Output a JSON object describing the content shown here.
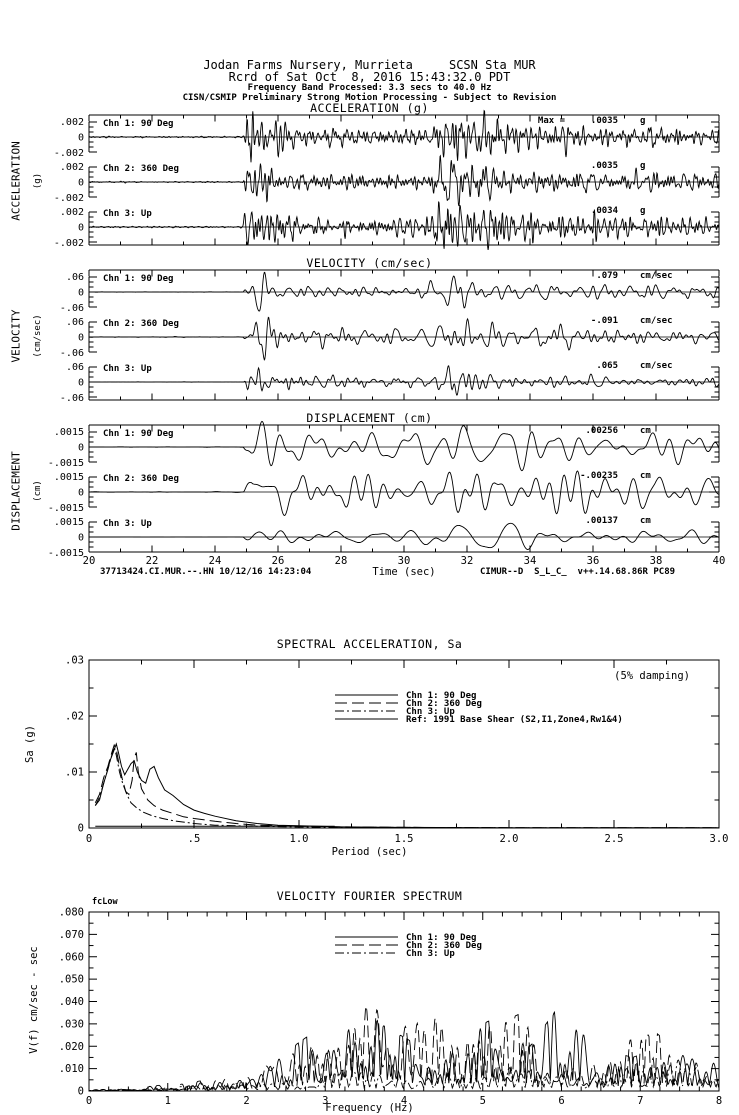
{
  "header": {
    "line1": "Jodan Farms Nursery, Murrieta     SCSN Sta MUR",
    "line2": "Rcrd of Sat Oct  8, 2016 15:43:32.0 PDT",
    "line3": "Frequency Band Processed: 3.3 secs to 40.0 Hz",
    "line4": "CISN/CSMIP Preliminary Strong Motion Processing - Subject to Revision"
  },
  "footer": {
    "left": "37713424.CI.MUR.--.HN 10/12/16 14:23:04",
    "right": "CIMUR--D  S_L_C_  v++.14.68.86R PC89"
  },
  "chart_data": [
    {
      "type": "line",
      "subtype": "seismogram-set",
      "time_axis": {
        "label": "Time (sec)",
        "xlim": [
          20,
          40
        ],
        "major_tick": 2,
        "minor_tick": 1,
        "tick_labels": [
          "20",
          "22",
          "24",
          "26",
          "28",
          "30",
          "32",
          "34",
          "36",
          "38",
          "40"
        ]
      },
      "groups": [
        {
          "title": "ACCELERATION (g)",
          "side_label": "ACCELERATION",
          "side_unit": "(g)",
          "ytick_value": 0.002,
          "ytick_labels": [
            ".002",
            "0",
            "-.002"
          ],
          "npts": 1400,
          "envelope": [
            [
              20,
              0.02
            ],
            [
              24.85,
              0.02
            ],
            [
              25.0,
              0.5
            ],
            [
              25.25,
              1.0
            ],
            [
              25.9,
              0.52
            ],
            [
              26.6,
              0.34
            ],
            [
              28.0,
              0.27
            ],
            [
              30.0,
              0.25
            ],
            [
              30.9,
              0.3
            ],
            [
              31.2,
              0.8
            ],
            [
              31.5,
              0.95
            ],
            [
              32.4,
              0.6
            ],
            [
              33.3,
              0.45
            ],
            [
              34.5,
              0.36
            ],
            [
              36.0,
              0.32
            ],
            [
              38.0,
              0.28
            ],
            [
              40,
              0.26
            ]
          ],
          "channels": [
            {
              "label": "Chn 1: 90 Deg",
              "max_prefix": "Max =",
              "max": ".0035",
              "max_value": 0.0035,
              "unit": "g",
              "seed": 11,
              "band": [
                2,
                13
              ]
            },
            {
              "label": "Chn 2: 360 Deg",
              "max_prefix": "",
              "max": ".0035",
              "max_value": 0.0035,
              "unit": "g",
              "seed": 23,
              "band": [
                2,
                13
              ]
            },
            {
              "label": "Chn 3: Up",
              "max_prefix": "",
              "max": ".0034",
              "max_value": 0.0034,
              "unit": "g",
              "seed": 37,
              "band": [
                2.5,
                14
              ]
            }
          ]
        },
        {
          "title": "VELOCITY (cm/sec)",
          "side_label": "VELOCITY",
          "side_unit": "(cm/sec)",
          "ytick_value": 0.06,
          "ytick_labels": [
            ".06",
            "0",
            "-.06"
          ],
          "npts": 1100,
          "envelope": [
            [
              20,
              0.012
            ],
            [
              24.9,
              0.012
            ],
            [
              25.05,
              0.6
            ],
            [
              25.35,
              0.95
            ],
            [
              26.1,
              0.5
            ],
            [
              27.0,
              0.4
            ],
            [
              28.5,
              0.33
            ],
            [
              30.6,
              0.33
            ],
            [
              31.2,
              1.0
            ],
            [
              32.2,
              0.62
            ],
            [
              33.2,
              0.5
            ],
            [
              34.5,
              0.42
            ],
            [
              36.0,
              0.38
            ],
            [
              38.0,
              0.33
            ],
            [
              40,
              0.3
            ]
          ],
          "channels": [
            {
              "label": "Chn 1: 90 Deg",
              "max_prefix": "",
              "max": ".079",
              "max_value": 0.079,
              "unit": "cm/sec",
              "seed": 41,
              "band": [
                0.9,
                6
              ]
            },
            {
              "label": "Chn 2: 360 Deg",
              "max_prefix": "",
              "max": "-.091",
              "max_value": -0.091,
              "unit": "cm/sec",
              "seed": 53,
              "band": [
                0.9,
                6
              ]
            },
            {
              "label": "Chn 3: Up",
              "max_prefix": "",
              "max": ".065",
              "max_value": 0.065,
              "unit": "cm/sec",
              "seed": 67,
              "band": [
                1.1,
                7
              ]
            }
          ]
        },
        {
          "title": "DISPLACEMENT (cm)",
          "side_label": "DISPLACEMENT",
          "side_unit": "(cm)",
          "ytick_value": 0.0015,
          "ytick_labels": [
            ".0015",
            "0",
            "-.0015"
          ],
          "npts": 900,
          "envelope": [
            [
              20,
              0.01
            ],
            [
              24.9,
              0.01
            ],
            [
              25.15,
              0.85
            ],
            [
              25.7,
              1.0
            ],
            [
              26.8,
              0.75
            ],
            [
              28.5,
              0.6
            ],
            [
              30.5,
              0.55
            ],
            [
              31.4,
              0.95
            ],
            [
              32.8,
              0.8
            ],
            [
              34.5,
              0.65
            ],
            [
              36.5,
              0.55
            ],
            [
              38.5,
              0.5
            ],
            [
              40,
              0.45
            ]
          ],
          "channels": [
            {
              "label": "Chn 1: 90 Deg",
              "max_prefix": "",
              "max": ".00256",
              "max_value": 0.00256,
              "unit": "cm",
              "seed": 71,
              "band": [
                0.55,
                2.6
              ]
            },
            {
              "label": "Chn 2: 360 Deg",
              "max_prefix": "",
              "max": "-.00235",
              "max_value": -0.00235,
              "unit": "cm",
              "seed": 83,
              "band": [
                0.55,
                2.6
              ]
            },
            {
              "label": "Chn 3: Up",
              "max_prefix": "",
              "max": ".00137",
              "max_value": 0.00137,
              "unit": "cm",
              "seed": 97,
              "band": [
                0.4,
                2.0
              ]
            }
          ]
        }
      ]
    },
    {
      "type": "line",
      "title": "SPECTRAL ACCELERATION, Sa",
      "annotation": "(5% damping)",
      "xlabel": "Period (sec)",
      "ylabel": "Sa (g)",
      "xlim": [
        0,
        3.0
      ],
      "ylim": [
        0,
        0.03
      ],
      "xtick_labels": [
        "0",
        ".5",
        "1.0",
        "1.5",
        "2.0",
        "2.5",
        "3.0"
      ],
      "ytick_labels": [
        "0",
        ".01",
        ".02",
        ".03"
      ],
      "legend_position": "top-center-inside",
      "series": [
        {
          "name": "Chn 1: 90 Deg",
          "dash": "",
          "points": [
            [
              0.03,
              0.004
            ],
            [
              0.05,
              0.005
            ],
            [
              0.07,
              0.008
            ],
            [
              0.09,
              0.0105
            ],
            [
              0.1,
              0.012
            ],
            [
              0.115,
              0.0135
            ],
            [
              0.13,
              0.015
            ],
            [
              0.14,
              0.0135
            ],
            [
              0.155,
              0.011
            ],
            [
              0.17,
              0.0095
            ],
            [
              0.185,
              0.0105
            ],
            [
              0.2,
              0.0115
            ],
            [
              0.215,
              0.012
            ],
            [
              0.23,
              0.01
            ],
            [
              0.25,
              0.0085
            ],
            [
              0.27,
              0.008
            ],
            [
              0.29,
              0.0105
            ],
            [
              0.31,
              0.011
            ],
            [
              0.33,
              0.009
            ],
            [
              0.36,
              0.0068
            ],
            [
              0.4,
              0.0058
            ],
            [
              0.45,
              0.0042
            ],
            [
              0.5,
              0.0032
            ],
            [
              0.55,
              0.0026
            ],
            [
              0.6,
              0.0021
            ],
            [
              0.7,
              0.0013
            ],
            [
              0.8,
              0.0008
            ],
            [
              0.9,
              0.0005
            ],
            [
              1.0,
              0.0004
            ],
            [
              1.2,
              0.0002
            ],
            [
              1.5,
              0.0001
            ],
            [
              2.0,
              6e-05
            ],
            [
              2.5,
              4e-05
            ],
            [
              3.0,
              3e-05
            ]
          ]
        },
        {
          "name": "Chn 2: 360 Deg",
          "dash": "12,5",
          "points": [
            [
              0.03,
              0.0045
            ],
            [
              0.05,
              0.006
            ],
            [
              0.07,
              0.009
            ],
            [
              0.09,
              0.011
            ],
            [
              0.105,
              0.013
            ],
            [
              0.12,
              0.0148
            ],
            [
              0.13,
              0.014
            ],
            [
              0.145,
              0.011
            ],
            [
              0.16,
              0.0085
            ],
            [
              0.175,
              0.0065
            ],
            [
              0.19,
              0.006
            ],
            [
              0.205,
              0.0085
            ],
            [
              0.215,
              0.0125
            ],
            [
              0.225,
              0.0135
            ],
            [
              0.235,
              0.01
            ],
            [
              0.25,
              0.007
            ],
            [
              0.28,
              0.005
            ],
            [
              0.31,
              0.004
            ],
            [
              0.35,
              0.0032
            ],
            [
              0.4,
              0.0026
            ],
            [
              0.45,
              0.002
            ],
            [
              0.5,
              0.0017
            ],
            [
              0.6,
              0.0012
            ],
            [
              0.7,
              0.0008
            ],
            [
              0.8,
              0.0005
            ],
            [
              1.0,
              0.0003
            ],
            [
              1.2,
              0.0002
            ],
            [
              1.5,
              0.0001
            ],
            [
              2.0,
              5e-05
            ],
            [
              3.0,
              3e-05
            ]
          ]
        },
        {
          "name": "Chn 3: Up",
          "dash": "9,3,2,3",
          "points": [
            [
              0.03,
              0.004
            ],
            [
              0.05,
              0.0055
            ],
            [
              0.07,
              0.008
            ],
            [
              0.09,
              0.0105
            ],
            [
              0.105,
              0.0125
            ],
            [
              0.12,
              0.0145
            ],
            [
              0.13,
              0.013
            ],
            [
              0.145,
              0.01
            ],
            [
              0.16,
              0.008
            ],
            [
              0.18,
              0.006
            ],
            [
              0.2,
              0.0045
            ],
            [
              0.23,
              0.0035
            ],
            [
              0.26,
              0.0028
            ],
            [
              0.3,
              0.0022
            ],
            [
              0.35,
              0.0017
            ],
            [
              0.4,
              0.0013
            ],
            [
              0.5,
              0.0008
            ],
            [
              0.6,
              0.0005
            ],
            [
              0.8,
              0.0003
            ],
            [
              1.0,
              0.0002
            ],
            [
              1.5,
              0.0001
            ],
            [
              2.0,
              5e-05
            ],
            [
              3.0,
              3e-05
            ]
          ]
        },
        {
          "name": "Ref: 1991 Base Shear (S2,I1,Zone4,Rw1&4)",
          "dash": "",
          "points": [
            [
              0.03,
              0.0003
            ],
            [
              1.17,
              0.0003
            ]
          ]
        }
      ]
    },
    {
      "type": "line",
      "title": "VELOCITY FOURIER SPECTRUM",
      "corner_label": "fcLow",
      "xlabel": "Frequency (Hz)",
      "ylabel": "V(f)  cm/sec - sec",
      "xlim": [
        0,
        8
      ],
      "ylim": [
        0,
        0.08
      ],
      "xtick_labels": [
        "0",
        "1",
        "2",
        "3",
        "4",
        "5",
        "6",
        "7",
        "8"
      ],
      "ytick_labels": [
        "0",
        ".010",
        ".020",
        ".030",
        ".040",
        ".050",
        ".060",
        ".070",
        ".080"
      ],
      "legend_position": "top-center-inside",
      "series": [
        {
          "name": "Chn 1: 90 Deg",
          "dash": "",
          "seed": 201,
          "envelope": [
            [
              0,
              0.0005
            ],
            [
              0.5,
              0.001
            ],
            [
              1,
              0.003
            ],
            [
              1.8,
              0.005
            ],
            [
              2.2,
              0.012
            ],
            [
              2.6,
              0.02
            ],
            [
              3.0,
              0.03
            ],
            [
              3.3,
              0.046
            ],
            [
              3.7,
              0.03
            ],
            [
              4.2,
              0.02
            ],
            [
              4.6,
              0.025
            ],
            [
              5.0,
              0.03
            ],
            [
              5.3,
              0.035
            ],
            [
              5.6,
              0.02
            ],
            [
              6.05,
              0.042
            ],
            [
              6.4,
              0.02
            ],
            [
              6.9,
              0.015
            ],
            [
              7.3,
              0.02
            ],
            [
              8,
              0.018
            ]
          ]
        },
        {
          "name": "Chn 2: 360 Deg",
          "dash": "12,5",
          "seed": 211,
          "envelope": [
            [
              0,
              0.0005
            ],
            [
              1,
              0.002
            ],
            [
              2,
              0.008
            ],
            [
              2.5,
              0.015
            ],
            [
              3.0,
              0.025
            ],
            [
              3.55,
              0.056
            ],
            [
              3.8,
              0.045
            ],
            [
              4.1,
              0.03
            ],
            [
              4.5,
              0.035
            ],
            [
              4.8,
              0.025
            ],
            [
              5.2,
              0.03
            ],
            [
              5.5,
              0.035
            ],
            [
              5.8,
              0.015
            ],
            [
              6.2,
              0.012
            ],
            [
              6.6,
              0.02
            ],
            [
              7.2,
              0.026
            ],
            [
              7.6,
              0.015
            ],
            [
              8,
              0.012
            ]
          ]
        },
        {
          "name": "Chn 3: Up",
          "dash": "9,3,2,3",
          "seed": 223,
          "envelope": [
            [
              0,
              0.0003
            ],
            [
              1,
              0.0015
            ],
            [
              2,
              0.004
            ],
            [
              3,
              0.007
            ],
            [
              3.6,
              0.01
            ],
            [
              4,
              0.008
            ],
            [
              4.5,
              0.009
            ],
            [
              5,
              0.007
            ],
            [
              5.5,
              0.012
            ],
            [
              6,
              0.009
            ],
            [
              6.5,
              0.012
            ],
            [
              7,
              0.012
            ],
            [
              7.5,
              0.016
            ],
            [
              8,
              0.012
            ]
          ]
        }
      ]
    }
  ]
}
